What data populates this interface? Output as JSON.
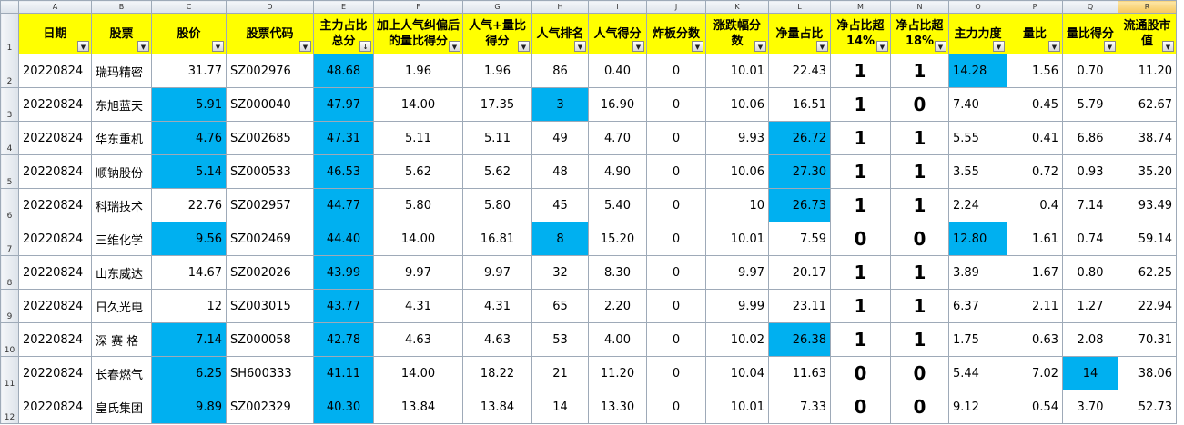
{
  "colors": {
    "header_fill": "#ffff00",
    "highlight_fill": "#00b0f0",
    "grid": "#9eaab8"
  },
  "column_letters": [
    "A",
    "B",
    "C",
    "D",
    "E",
    "F",
    "G",
    "H",
    "I",
    "J",
    "K",
    "L",
    "M",
    "N",
    "O",
    "P",
    "Q",
    "R"
  ],
  "headers": [
    "日期",
    "股票",
    "股价",
    "股票代码",
    "主力占比总分",
    "加上人气纠偏后的量比得分",
    "人气+量比得分",
    "人气排名",
    "人气得分",
    "炸板分数",
    "涨跌幅分数",
    "净量占比",
    "净占比超14%",
    "净占比超18%",
    "主力力度",
    "量比",
    "量比得分",
    "流通股市值"
  ],
  "header_row_number": "1",
  "rows": [
    {
      "n": "2",
      "cells": [
        "20220824",
        "瑞玛精密",
        "31.77",
        "SZ002976",
        "48.68",
        "1.96",
        "1.96",
        "86",
        "0.40",
        "0",
        "10.01",
        "22.43",
        "1",
        "1",
        "14.28",
        "1.56",
        "0.70",
        "11.20"
      ],
      "hl": [
        4,
        14
      ]
    },
    {
      "n": "3",
      "cells": [
        "20220824",
        "东旭蓝天",
        "5.91",
        "SZ000040",
        "47.97",
        "14.00",
        "17.35",
        "3",
        "16.90",
        "0",
        "10.06",
        "16.51",
        "1",
        "0",
        "7.40",
        "0.45",
        "5.79",
        "62.67"
      ],
      "hl": [
        2,
        4,
        7
      ]
    },
    {
      "n": "4",
      "cells": [
        "20220824",
        "华东重机",
        "4.76",
        "SZ002685",
        "47.31",
        "5.11",
        "5.11",
        "49",
        "4.70",
        "0",
        "9.93",
        "26.72",
        "1",
        "1",
        "5.55",
        "0.41",
        "6.86",
        "38.74"
      ],
      "hl": [
        2,
        4,
        11
      ]
    },
    {
      "n": "5",
      "cells": [
        "20220824",
        "顺钠股份",
        "5.14",
        "SZ000533",
        "46.53",
        "5.62",
        "5.62",
        "48",
        "4.90",
        "0",
        "10.06",
        "27.30",
        "1",
        "1",
        "3.55",
        "0.72",
        "0.93",
        "35.20"
      ],
      "hl": [
        2,
        4,
        11
      ]
    },
    {
      "n": "6",
      "cells": [
        "20220824",
        "科瑞技术",
        "22.76",
        "SZ002957",
        "44.77",
        "5.80",
        "5.80",
        "45",
        "5.40",
        "0",
        "10",
        "26.73",
        "1",
        "1",
        "2.24",
        "0.4",
        "7.14",
        "93.49"
      ],
      "hl": [
        4,
        11
      ]
    },
    {
      "n": "7",
      "cells": [
        "20220824",
        "三维化学",
        "9.56",
        "SZ002469",
        "44.40",
        "14.00",
        "16.81",
        "8",
        "15.20",
        "0",
        "10.01",
        "7.59",
        "0",
        "0",
        "12.80",
        "1.61",
        "0.74",
        "59.14"
      ],
      "hl": [
        2,
        4,
        7,
        14
      ]
    },
    {
      "n": "8",
      "cells": [
        "20220824",
        "山东威达",
        "14.67",
        "SZ002026",
        "43.99",
        "9.97",
        "9.97",
        "32",
        "8.30",
        "0",
        "9.97",
        "20.17",
        "1",
        "1",
        "3.89",
        "1.67",
        "0.80",
        "62.25"
      ],
      "hl": [
        4
      ]
    },
    {
      "n": "9",
      "cells": [
        "20220824",
        "日久光电",
        "12",
        "SZ003015",
        "43.77",
        "4.31",
        "4.31",
        "65",
        "2.20",
        "0",
        "9.99",
        "23.11",
        "1",
        "1",
        "6.37",
        "2.11",
        "1.27",
        "22.94"
      ],
      "hl": [
        4
      ]
    },
    {
      "n": "10",
      "cells": [
        "20220824",
        "深 赛 格",
        "7.14",
        "SZ000058",
        "42.78",
        "4.63",
        "4.63",
        "53",
        "4.00",
        "0",
        "10.02",
        "26.38",
        "1",
        "1",
        "1.75",
        "0.63",
        "2.08",
        "70.31"
      ],
      "hl": [
        2,
        4,
        11
      ]
    },
    {
      "n": "11",
      "cells": [
        "20220824",
        "长春燃气",
        "6.25",
        "SH600333",
        "41.11",
        "14.00",
        "18.22",
        "21",
        "11.20",
        "0",
        "10.04",
        "11.63",
        "0",
        "0",
        "5.44",
        "7.02",
        "14",
        "38.06"
      ],
      "hl": [
        2,
        4,
        16
      ]
    },
    {
      "n": "12",
      "cells": [
        "20220824",
        "皇氏集团",
        "9.89",
        "SZ002329",
        "40.30",
        "13.84",
        "13.84",
        "14",
        "13.30",
        "0",
        "10.01",
        "7.33",
        "0",
        "0",
        "9.12",
        "0.54",
        "3.70",
        "52.73"
      ],
      "hl": [
        2,
        4
      ]
    }
  ]
}
